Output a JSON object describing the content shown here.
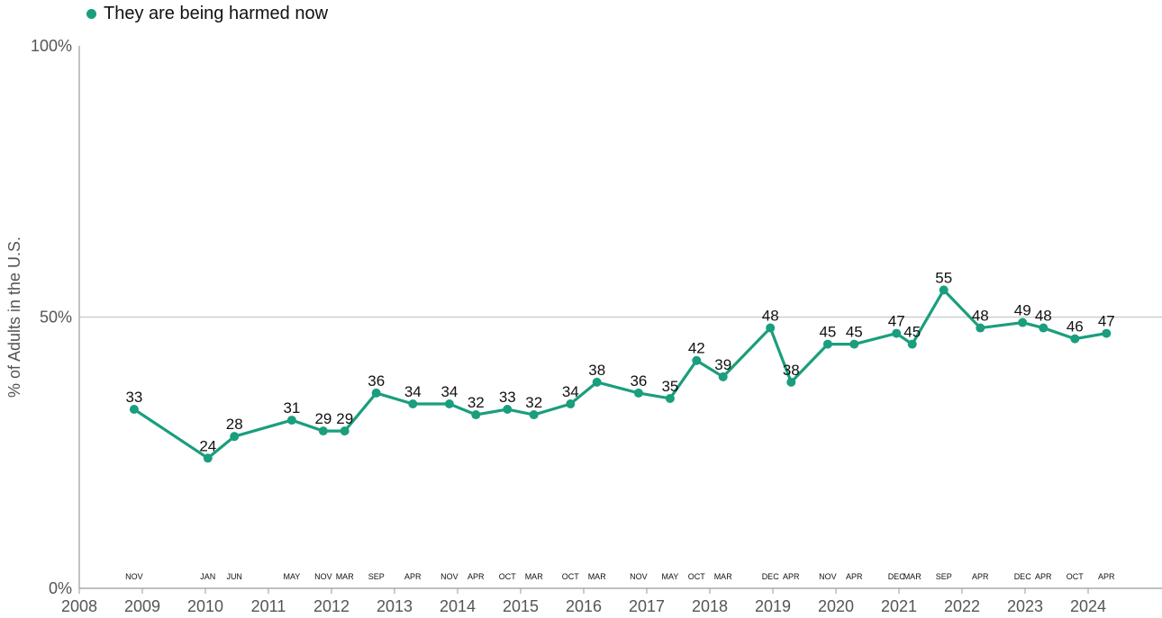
{
  "colors": {
    "series": "#1a9e7d",
    "grid": "#c8c8c8",
    "axis": "#9a9a9a",
    "text": "#111111",
    "tick": "#555555"
  },
  "chart_data": {
    "type": "line",
    "ylabel": "% of Adults in the U.S.",
    "ylim": [
      0,
      100
    ],
    "yticks": [
      0,
      50,
      100
    ],
    "ytick_labels": [
      "0%",
      "50%",
      "100%"
    ],
    "xlim": [
      2008,
      2025.2
    ],
    "xticks": [
      2008,
      2009,
      2010,
      2011,
      2012,
      2013,
      2014,
      2015,
      2016,
      2017,
      2018,
      2019,
      2020,
      2021,
      2022,
      2023,
      2024
    ],
    "grid": "y at 50%",
    "legend_position": "top-left",
    "series": [
      {
        "name": "They are being harmed now",
        "points": [
          {
            "x": 2008.87,
            "y": 33,
            "month": "NOV"
          },
          {
            "x": 2010.04,
            "y": 24,
            "month": "JAN"
          },
          {
            "x": 2010.46,
            "y": 28,
            "month": "JUN"
          },
          {
            "x": 2011.37,
            "y": 31,
            "month": "MAY"
          },
          {
            "x": 2011.87,
            "y": 29,
            "month": "NOV"
          },
          {
            "x": 2012.21,
            "y": 29,
            "month": "MAR"
          },
          {
            "x": 2012.71,
            "y": 36,
            "month": "SEP"
          },
          {
            "x": 2013.29,
            "y": 34,
            "month": "APR"
          },
          {
            "x": 2013.87,
            "y": 34,
            "month": "NOV"
          },
          {
            "x": 2014.29,
            "y": 32,
            "month": "APR"
          },
          {
            "x": 2014.79,
            "y": 33,
            "month": "OCT"
          },
          {
            "x": 2015.21,
            "y": 32,
            "month": "MAR"
          },
          {
            "x": 2015.79,
            "y": 34,
            "month": "OCT"
          },
          {
            "x": 2016.21,
            "y": 38,
            "month": "MAR"
          },
          {
            "x": 2016.87,
            "y": 36,
            "month": "NOV"
          },
          {
            "x": 2017.37,
            "y": 35,
            "month": "MAY"
          },
          {
            "x": 2017.79,
            "y": 42,
            "month": "OCT"
          },
          {
            "x": 2018.21,
            "y": 39,
            "month": "MAR"
          },
          {
            "x": 2018.96,
            "y": 48,
            "month": "DEC"
          },
          {
            "x": 2019.29,
            "y": 38,
            "month": "APR"
          },
          {
            "x": 2019.87,
            "y": 45,
            "month": "NOV"
          },
          {
            "x": 2020.29,
            "y": 45,
            "month": "APR"
          },
          {
            "x": 2020.96,
            "y": 47,
            "month": "DEC"
          },
          {
            "x": 2021.21,
            "y": 45,
            "month": "MAR"
          },
          {
            "x": 2021.71,
            "y": 55,
            "month": "SEP"
          },
          {
            "x": 2022.29,
            "y": 48,
            "month": "APR"
          },
          {
            "x": 2022.96,
            "y": 49,
            "month": "DEC"
          },
          {
            "x": 2023.29,
            "y": 48,
            "month": "APR"
          },
          {
            "x": 2023.79,
            "y": 46,
            "month": "OCT"
          },
          {
            "x": 2024.29,
            "y": 47,
            "month": "APR"
          }
        ]
      }
    ]
  }
}
